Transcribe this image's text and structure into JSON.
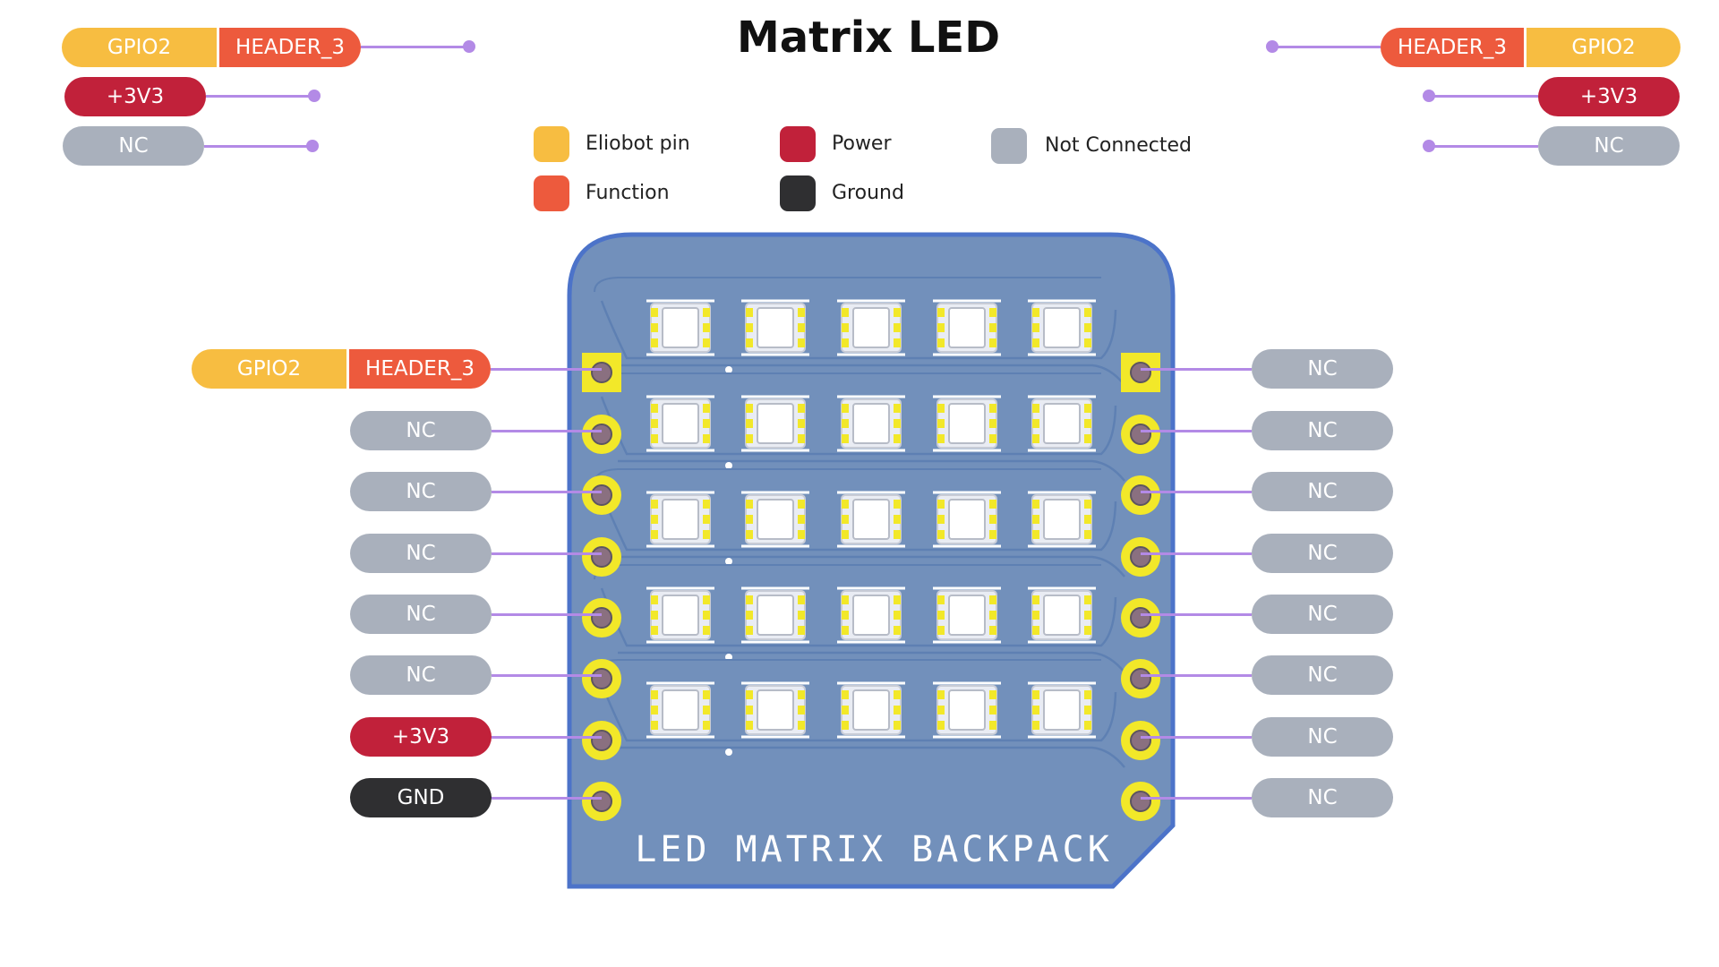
{
  "title": "Matrix LED",
  "colors": {
    "eliobot_pin": "#f7bd41",
    "function": "#ed5a3d",
    "power": "#c1213a",
    "ground": "#2f2f31",
    "not_connected": "#a9b0bc",
    "wire": "#b38ae6",
    "board": "#7290bb",
    "pad": "#f2e829"
  },
  "legend": {
    "eliobot_pin": "Eliobot pin",
    "function": "Function",
    "power": "Power",
    "ground": "Ground",
    "not_connected": "Not Connected"
  },
  "top_left": {
    "row1": {
      "gpio": "GPIO2",
      "func": "HEADER_3"
    },
    "row2": "+3V3",
    "row3": "NC"
  },
  "top_right": {
    "row1": {
      "func": "HEADER_3",
      "gpio": "GPIO2"
    },
    "row2": "+3V3",
    "row3": "NC"
  },
  "left_pins": {
    "pin1": {
      "gpio": "GPIO2",
      "func": "HEADER_3"
    },
    "pin2": "NC",
    "pin3": "NC",
    "pin4": "NC",
    "pin5": "NC",
    "pin6": "NC",
    "pin7": "+3V3",
    "pin8": "GND"
  },
  "right_pins": {
    "pin1": "NC",
    "pin2": "NC",
    "pin3": "NC",
    "pin4": "NC",
    "pin5": "NC",
    "pin6": "NC",
    "pin7": "NC",
    "pin8": "NC"
  },
  "board": {
    "label": "LED MATRIX BACKPACK",
    "led_rows": 5,
    "led_cols": 5
  }
}
